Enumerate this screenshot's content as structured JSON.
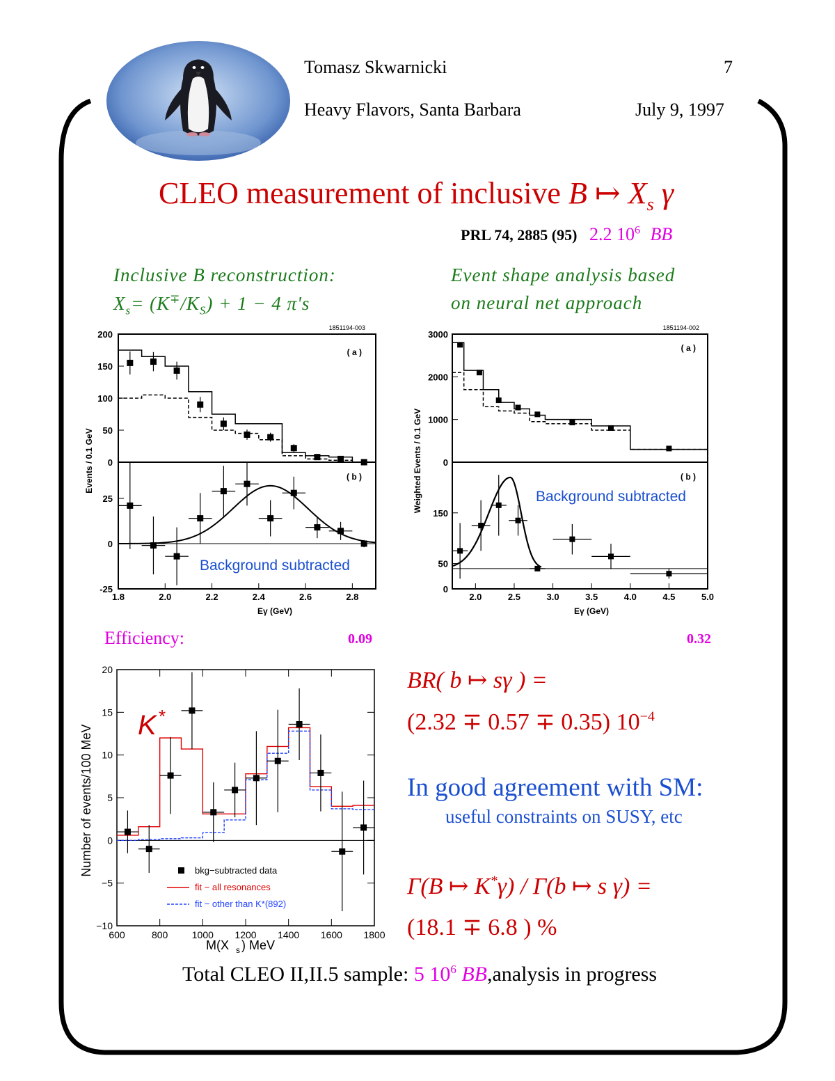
{
  "header": {
    "author": "Tomasz Skwarnicki",
    "page_number": "7",
    "venue": "Heavy Flavors, Santa Barbara",
    "date": "July 9, 1997",
    "logo_icon": "penguin-logo"
  },
  "title": {
    "prefix": "CLEO measurement of inclusive ",
    "formula": "B ↦ X",
    "sub": "s",
    "gamma": " γ"
  },
  "reference": {
    "paper": "PRL 74, 2885 (95)",
    "count_mantissa": "2.2 10",
    "count_exp": "6",
    "count_unit": "BB"
  },
  "left_method": {
    "line1": "Inclusive B reconstruction:",
    "line2_a": "X",
    "line2_sub": "s",
    "line2_b": "= (K",
    "line2_sup": "∓",
    "line2_c": "/K",
    "line2_sub2": "S",
    "line2_d": ") + 1 − 4 π's"
  },
  "right_method": {
    "line1": "Event shape analysis based",
    "line2": "on neural net approach"
  },
  "efficiency": {
    "label": "Efficiency:",
    "left_value": "0.09",
    "right_value": "0.32"
  },
  "results": {
    "br_line1": "BR( b ↦ sγ ) =",
    "br_line2": "(2.32 ∓ 0.57 ∓ 0.35) 10",
    "br_exp": "−4",
    "agreement": "In good agreement with SM:",
    "constraints": "useful constraints on SUSY, etc",
    "ratio_line1": "Γ(B ↦ K",
    "ratio_sup": "*",
    "ratio_line1b": "γ) / Γ(b ↦ s γ) =",
    "ratio_line2": "(18.1 ∓ 6.8 ) %"
  },
  "footer": {
    "prefix": "Total CLEO II,II.5 sample: ",
    "count": "5 10",
    "exp": "6",
    "unit": "BB",
    "suffix": ",analysis in progress"
  },
  "chart_data": [
    {
      "id": "left-top",
      "type": "line",
      "tag": "1851194-003",
      "panel_label": "( a )",
      "ylabel": "Events / 0.1 GeV",
      "xlim": [
        1.8,
        2.9
      ],
      "ylim": [
        0,
        200
      ],
      "yticks": [
        0,
        50,
        100,
        150,
        200
      ],
      "hist_solid": {
        "edges": [
          1.8,
          1.9,
          2.0,
          2.1,
          2.2,
          2.3,
          2.4,
          2.5,
          2.6,
          2.7,
          2.8,
          2.9
        ],
        "values": [
          175,
          165,
          150,
          110,
          75,
          60,
          60,
          15,
          10,
          8,
          0
        ]
      },
      "hist_dashed": {
        "edges": [
          1.8,
          1.9,
          2.0,
          2.1,
          2.2,
          2.3,
          2.4,
          2.5,
          2.6,
          2.7,
          2.8,
          2.9
        ],
        "values": [
          100,
          105,
          100,
          70,
          50,
          45,
          35,
          10,
          5,
          3,
          0
        ]
      },
      "points": [
        {
          "x": 1.85,
          "y": 155,
          "err": 18
        },
        {
          "x": 1.95,
          "y": 157,
          "err": 15
        },
        {
          "x": 2.05,
          "y": 143,
          "err": 14
        },
        {
          "x": 2.15,
          "y": 90,
          "err": 12
        },
        {
          "x": 2.25,
          "y": 60,
          "err": 10
        },
        {
          "x": 2.35,
          "y": 43,
          "err": 8
        },
        {
          "x": 2.45,
          "y": 39,
          "err": 7
        },
        {
          "x": 2.55,
          "y": 22,
          "err": 6
        },
        {
          "x": 2.65,
          "y": 8,
          "err": 4
        },
        {
          "x": 2.75,
          "y": 5,
          "err": 3
        },
        {
          "x": 2.85,
          "y": 0,
          "err": 1
        }
      ]
    },
    {
      "id": "left-bottom",
      "type": "scatter",
      "panel_label": "( b )",
      "annotation": "Background subtracted",
      "xlabel": "Eγ (GeV)",
      "xlim": [
        1.8,
        2.9
      ],
      "ylim": [
        -25,
        45
      ],
      "yticks": [
        -25,
        0,
        25
      ],
      "xticks": [
        1.8,
        2.0,
        2.2,
        2.4,
        2.6,
        2.8
      ],
      "xticklabels": [
        "1.8",
        "2.0",
        "2.2",
        "2.4",
        "2.6",
        "2.8"
      ],
      "fit": {
        "shape": "gaussian",
        "mean": 2.45,
        "sigma": 0.16,
        "amp": 32
      },
      "points": [
        {
          "x": 1.85,
          "y": 21,
          "err": 24,
          "xerr": 0.05
        },
        {
          "x": 1.95,
          "y": -1,
          "err": 16,
          "xerr": 0.05
        },
        {
          "x": 2.05,
          "y": -7,
          "err": 16,
          "xerr": 0.05
        },
        {
          "x": 2.15,
          "y": 14,
          "err": 14,
          "xerr": 0.05
        },
        {
          "x": 2.25,
          "y": 29,
          "err": 14,
          "xerr": 0.05
        },
        {
          "x": 2.35,
          "y": 33,
          "err": 12,
          "xerr": 0.05
        },
        {
          "x": 2.45,
          "y": 14,
          "err": 10,
          "xerr": 0.05
        },
        {
          "x": 2.55,
          "y": 28,
          "err": 9,
          "xerr": 0.05
        },
        {
          "x": 2.65,
          "y": 9,
          "err": 6,
          "xerr": 0.05
        },
        {
          "x": 2.75,
          "y": 7,
          "err": 5,
          "xerr": 0.05
        },
        {
          "x": 2.85,
          "y": 0,
          "err": 2,
          "xerr": 0.0
        }
      ]
    },
    {
      "id": "right-top",
      "type": "line",
      "tag": "1851194-002",
      "panel_label": "( a )",
      "ylabel": "Weighted Events / 0.1 GeV",
      "xlim": [
        1.7,
        5.0
      ],
      "ylim": [
        0,
        3000
      ],
      "yticks": [
        0,
        1000,
        2000,
        3000
      ],
      "hist_solid": {
        "edges": [
          1.7,
          1.85,
          2.1,
          2.3,
          2.5,
          2.7,
          2.9,
          3.5,
          4.0,
          5.0
        ],
        "values": [
          2800,
          2150,
          1700,
          1400,
          1250,
          1100,
          1000,
          850,
          300
        ]
      },
      "hist_dashed": {
        "edges": [
          1.7,
          1.85,
          2.1,
          2.3,
          2.5,
          2.7,
          2.9,
          3.5,
          4.0,
          5.0
        ],
        "values": [
          2100,
          1700,
          1300,
          1200,
          1150,
          950,
          900,
          750,
          300
        ]
      },
      "points": [
        {
          "x": 1.8,
          "y": 2750,
          "err": 60
        },
        {
          "x": 2.05,
          "y": 2100,
          "err": 50
        },
        {
          "x": 2.3,
          "y": 1450,
          "err": 40
        },
        {
          "x": 2.55,
          "y": 1280,
          "err": 40
        },
        {
          "x": 2.8,
          "y": 1120,
          "err": 35
        },
        {
          "x": 3.25,
          "y": 930,
          "err": 30
        },
        {
          "x": 3.75,
          "y": 800,
          "err": 30
        },
        {
          "x": 4.5,
          "y": 320,
          "err": 25
        }
      ]
    },
    {
      "id": "right-bottom",
      "type": "scatter",
      "panel_label": "( b )",
      "annotation": "Background subtracted",
      "xlabel": "Eγ (GeV)",
      "xlim": [
        1.7,
        5.0
      ],
      "ylim": [
        0,
        250
      ],
      "yticks": [
        0,
        50,
        150
      ],
      "xticks": [
        2.0,
        2.5,
        3.0,
        3.5,
        4.0,
        4.5,
        5.0
      ],
      "xticklabels": [
        "2.0",
        "2.5",
        "3.0",
        "3.5",
        "4.0",
        "4.5",
        "5.0"
      ],
      "baseline": 40,
      "fit": {
        "shape": "peak",
        "mean": 2.45,
        "left_sigma": 0.28,
        "right_sigma": 0.14,
        "amp": 180,
        "base": 40,
        "start": 1.7,
        "end": 2.85
      },
      "points": [
        {
          "x": 1.8,
          "y": 75,
          "err": 55,
          "xerr": 0.1
        },
        {
          "x": 2.07,
          "y": 125,
          "err": 50,
          "xerr": 0.12
        },
        {
          "x": 2.3,
          "y": 165,
          "err": 60,
          "xerr": 0.1
        },
        {
          "x": 2.55,
          "y": 135,
          "err": 30,
          "xerr": 0.12
        },
        {
          "x": 2.8,
          "y": 40,
          "err": 5,
          "xerr": 0.1
        },
        {
          "x": 3.25,
          "y": 98,
          "err": 30,
          "xerr": 0.25
        },
        {
          "x": 3.75,
          "y": 64,
          "err": 25,
          "xerr": 0.25
        },
        {
          "x": 4.5,
          "y": 30,
          "err": 10,
          "xerr": 0.5
        }
      ]
    },
    {
      "id": "mass",
      "type": "line",
      "xlabel": "M(X",
      "xlabel_sub": "s",
      "xlabel_tail": ")  MeV",
      "ylabel": "Number of events/100 MeV",
      "annotation": "K",
      "annotation_sup": "*",
      "xlim": [
        600,
        1800
      ],
      "ylim": [
        -10,
        20
      ],
      "xticks": [
        600,
        800,
        1000,
        1200,
        1400,
        1600,
        1800
      ],
      "yticks": [
        -10,
        -5,
        0,
        5,
        10,
        15,
        20
      ],
      "legend": [
        {
          "kind": "marker",
          "label": "bkg−subtracted data"
        },
        {
          "kind": "solid",
          "color": "#e00000",
          "label": "fit − all resonances"
        },
        {
          "kind": "dashed",
          "color": "#2244ff",
          "label": "fit − other than K*(892)"
        }
      ],
      "series": [
        {
          "name": "fit − all resonances",
          "color": "#e00000",
          "edges": [
            600,
            700,
            800,
            900,
            1000,
            1100,
            1200,
            1300,
            1400,
            1500,
            1600,
            1700,
            1800
          ],
          "values": [
            0.6,
            1.6,
            12.0,
            10.7,
            3.1,
            3.1,
            7.8,
            11.0,
            13.2,
            6.3,
            4.0,
            4.1
          ]
        },
        {
          "name": "fit − other than K*(892)",
          "color": "#2244ff",
          "edges": [
            600,
            700,
            800,
            900,
            1000,
            1100,
            1200,
            1300,
            1400,
            1500,
            1600,
            1700,
            1800
          ],
          "values": [
            0.0,
            0.1,
            0.2,
            0.3,
            0.9,
            2.4,
            7.1,
            10.2,
            12.8,
            5.9,
            3.7,
            3.6
          ]
        }
      ],
      "points": [
        {
          "x": 650,
          "y": 1.0,
          "err": 2.5,
          "xerr": 50
        },
        {
          "x": 750,
          "y": -1.0,
          "err": 2.8,
          "xerr": 50
        },
        {
          "x": 850,
          "y": 7.6,
          "err": 4.5,
          "xerr": 50
        },
        {
          "x": 950,
          "y": 15.2,
          "err": 4.5,
          "xerr": 50
        },
        {
          "x": 1050,
          "y": 3.3,
          "err": 3.5,
          "xerr": 50
        },
        {
          "x": 1150,
          "y": 5.9,
          "err": 3.2,
          "xerr": 50
        },
        {
          "x": 1250,
          "y": 7.3,
          "err": 5.5,
          "xerr": 50
        },
        {
          "x": 1350,
          "y": 9.3,
          "err": 6.0,
          "xerr": 50
        },
        {
          "x": 1450,
          "y": 13.6,
          "err": 4.2,
          "xerr": 50
        },
        {
          "x": 1550,
          "y": 7.9,
          "err": 4.5,
          "xerr": 50
        },
        {
          "x": 1650,
          "y": -1.3,
          "err": 7.0,
          "xerr": 50
        },
        {
          "x": 1750,
          "y": 1.5,
          "err": 5.5,
          "xerr": 50
        }
      ]
    }
  ]
}
